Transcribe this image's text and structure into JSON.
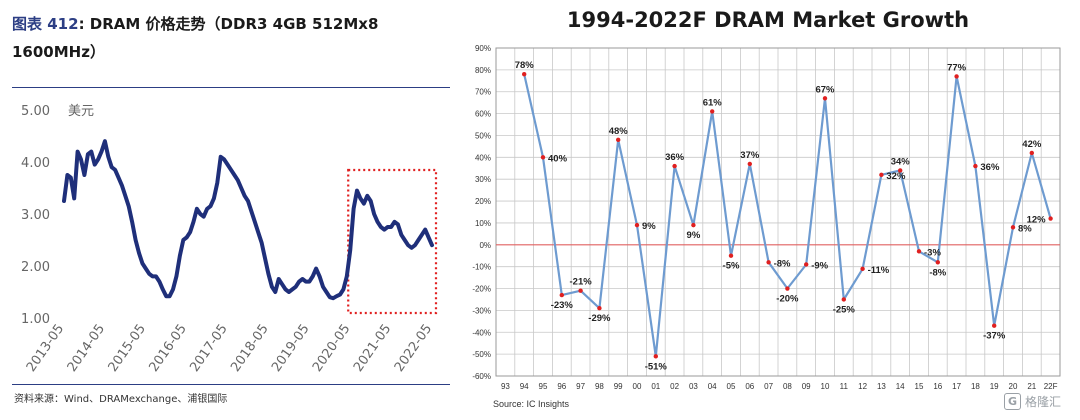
{
  "left_title": {
    "label": "图表",
    "number": "412",
    "text": ": DRAM 价格走势（DDR3 4GB 512Mx8 1600MHz）"
  },
  "left_source": "资料来源：Wind、DRAMexchange、浦银国际",
  "right_source": "Source: IC Insights",
  "watermark": "格隆汇",
  "colors": {
    "price_line": "#1f2f7a",
    "highlight_box": "#e02020",
    "growth_line": "#6e9bd0",
    "growth_point": "#e02020",
    "zero_line": "#e06060",
    "title_accent": "#2c3e84"
  },
  "chart_data": [
    {
      "type": "line",
      "title": "",
      "ylabel": "美元",
      "yticks": [
        "5.00",
        "4.00",
        "3.00",
        "2.00",
        "1.00"
      ],
      "ylim": [
        1.0,
        5.0
      ],
      "xticks": [
        "2013-05",
        "2014-05",
        "2015-05",
        "2016-05",
        "2017-05",
        "2018-05",
        "2019-05",
        "2020-05",
        "2021-05",
        "2022-05"
      ],
      "x_range": [
        "2013-05",
        "2022-05"
      ],
      "grid": false,
      "highlight_region": {
        "from": "2020-05",
        "to": "2022-05",
        "style": "dotted red box"
      },
      "series": [
        {
          "name": "",
          "x": [
            "2013-05",
            "2013-06",
            "2013-07",
            "2013-08",
            "2013-09",
            "2013-10",
            "2013-11",
            "2013-12",
            "2014-01",
            "2014-02",
            "2014-03",
            "2014-04",
            "2014-05",
            "2014-06",
            "2014-07",
            "2014-08",
            "2014-09",
            "2014-10",
            "2014-11",
            "2014-12",
            "2015-01",
            "2015-02",
            "2015-03",
            "2015-04",
            "2015-05",
            "2015-06",
            "2015-07",
            "2015-08",
            "2015-09",
            "2015-10",
            "2015-11",
            "2015-12",
            "2016-01",
            "2016-02",
            "2016-03",
            "2016-04",
            "2016-05",
            "2016-06",
            "2016-07",
            "2016-08",
            "2016-09",
            "2016-10",
            "2016-11",
            "2016-12",
            "2017-01",
            "2017-02",
            "2017-03",
            "2017-04",
            "2017-05",
            "2017-06",
            "2017-07",
            "2017-08",
            "2017-09",
            "2017-10",
            "2017-11",
            "2017-12",
            "2018-01",
            "2018-02",
            "2018-03",
            "2018-04",
            "2018-05",
            "2018-06",
            "2018-07",
            "2018-08",
            "2018-09",
            "2018-10",
            "2018-11",
            "2018-12",
            "2019-01",
            "2019-02",
            "2019-03",
            "2019-04",
            "2019-05",
            "2019-06",
            "2019-07",
            "2019-08",
            "2019-09",
            "2019-10",
            "2019-11",
            "2019-12",
            "2020-01",
            "2020-02",
            "2020-03",
            "2020-04",
            "2020-05",
            "2020-06",
            "2020-07",
            "2020-08",
            "2020-09",
            "2020-10",
            "2020-11",
            "2020-12",
            "2021-01",
            "2021-02",
            "2021-03",
            "2021-04",
            "2021-05",
            "2021-06",
            "2021-07",
            "2021-08",
            "2021-09",
            "2021-10",
            "2021-11",
            "2021-12",
            "2022-01",
            "2022-02",
            "2022-03",
            "2022-04",
            "2022-05"
          ],
          "y": [
            3.25,
            3.75,
            3.7,
            3.3,
            4.2,
            4.05,
            3.75,
            4.15,
            4.2,
            3.95,
            4.05,
            4.2,
            4.4,
            4.1,
            3.9,
            3.85,
            3.7,
            3.55,
            3.35,
            3.15,
            2.85,
            2.5,
            2.25,
            2.05,
            1.95,
            1.85,
            1.8,
            1.8,
            1.7,
            1.55,
            1.42,
            1.42,
            1.55,
            1.8,
            2.2,
            2.5,
            2.55,
            2.65,
            2.85,
            3.1,
            3.0,
            2.95,
            3.1,
            3.15,
            3.3,
            3.6,
            4.1,
            4.05,
            3.95,
            3.85,
            3.75,
            3.65,
            3.5,
            3.35,
            3.25,
            3.05,
            2.85,
            2.65,
            2.45,
            2.15,
            1.85,
            1.6,
            1.5,
            1.75,
            1.65,
            1.55,
            1.5,
            1.55,
            1.6,
            1.7,
            1.75,
            1.7,
            1.7,
            1.8,
            1.95,
            1.8,
            1.6,
            1.5,
            1.4,
            1.38,
            1.42,
            1.45,
            1.55,
            1.8,
            2.3,
            3.1,
            3.45,
            3.3,
            3.2,
            3.35,
            3.25,
            3.0,
            2.85,
            2.75,
            2.7,
            2.75,
            2.75,
            2.85,
            2.8,
            2.6,
            2.5,
            2.4,
            2.35,
            2.4,
            2.5,
            2.6,
            2.7,
            2.55,
            2.4
          ]
        }
      ]
    },
    {
      "type": "line",
      "title": "1994-2022F DRAM Market Growth",
      "xlabel": "",
      "ylabel": "",
      "ylim": [
        -0.6,
        0.9
      ],
      "yticks": [
        "90%",
        "80%",
        "70%",
        "60%",
        "50%",
        "40%",
        "30%",
        "20%",
        "10%",
        "0%",
        "-10%",
        "-20%",
        "-30%",
        "-40%",
        "-50%",
        "-60%"
      ],
      "categories": [
        "93",
        "94",
        "95",
        "96",
        "97",
        "98",
        "99",
        "00",
        "01",
        "02",
        "03",
        "04",
        "05",
        "06",
        "07",
        "08",
        "09",
        "10",
        "11",
        "12",
        "13",
        "14",
        "15",
        "16",
        "17",
        "18",
        "19",
        "20",
        "21",
        "22F"
      ],
      "grid": true,
      "series": [
        {
          "name": "",
          "values": [
            null,
            0.78,
            0.4,
            -0.23,
            -0.21,
            -0.29,
            0.48,
            0.09,
            -0.51,
            0.36,
            0.09,
            0.61,
            -0.05,
            0.37,
            -0.08,
            -0.2,
            -0.09,
            0.67,
            -0.25,
            -0.11,
            0.32,
            0.34,
            -0.03,
            -0.08,
            0.77,
            0.36,
            -0.37,
            0.08,
            0.42,
            0.12
          ],
          "labels": [
            "",
            "78%",
            "40%",
            "-23%",
            "-21%",
            "-29%",
            "48%",
            "9%",
            "-51%",
            "36%",
            "9%",
            "61%",
            "-5%",
            "37%",
            "-8%",
            "-20%",
            "-9%",
            "67%",
            "-25%",
            "-11%",
            "32%",
            "34%",
            "-3%",
            "-8%",
            "77%",
            "36%",
            "-37%",
            "8%",
            "42%",
            "12%"
          ]
        }
      ]
    }
  ]
}
